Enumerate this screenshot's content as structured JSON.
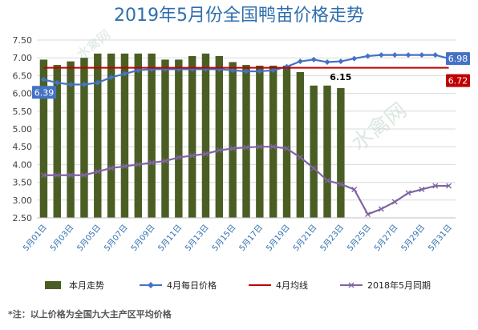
{
  "chart_data": {
    "type": "bar",
    "title": "2019年5月份全国鸭苗价格走势",
    "ylim": [
      2.5,
      7.5
    ],
    "yticks": [
      "2.50",
      "3.00",
      "3.50",
      "4.00",
      "4.50",
      "5.00",
      "5.50",
      "6.00",
      "6.50",
      "7.00",
      "7.50"
    ],
    "categories": [
      "5月01日",
      "5月02日",
      "5月03日",
      "5月04日",
      "5月05日",
      "5月06日",
      "5月07日",
      "5月08日",
      "5月09日",
      "5月10日",
      "5月11日",
      "5月12日",
      "5月13日",
      "5月14日",
      "5月15日",
      "5月16日",
      "5月17日",
      "5月18日",
      "5月19日",
      "5月20日",
      "5月21日",
      "5月22日",
      "5月23日",
      "5月24日",
      "5月25日",
      "5月26日",
      "5月27日",
      "5月28日",
      "5月29日",
      "5月30日",
      "5月31日"
    ],
    "xtick_labels": [
      "5月01日",
      "5月03日",
      "5月05日",
      "5月07日",
      "5月09日",
      "5月11日",
      "5月13日",
      "5月15日",
      "5月17日",
      "5月19日",
      "5月21日",
      "5月23日",
      "5月25日",
      "5月27日",
      "5月29日",
      "5月31日"
    ],
    "series": [
      {
        "name": "本月走势",
        "kind": "bar",
        "color": "#4a5e23",
        "values": [
          6.95,
          6.8,
          6.9,
          7.0,
          7.12,
          7.12,
          7.12,
          7.12,
          7.12,
          6.95,
          6.95,
          7.05,
          7.12,
          7.05,
          6.88,
          6.8,
          6.78,
          6.78,
          6.78,
          6.6,
          6.22,
          6.22,
          6.15,
          null,
          null,
          null,
          null,
          null,
          null,
          null,
          null
        ]
      },
      {
        "name": "4月每日价格",
        "kind": "line",
        "color": "#4472c4",
        "values": [
          6.39,
          6.3,
          6.25,
          6.25,
          6.3,
          6.45,
          6.55,
          6.65,
          6.68,
          6.68,
          6.68,
          6.68,
          6.68,
          6.68,
          6.65,
          6.62,
          6.62,
          6.65,
          6.75,
          6.9,
          6.95,
          6.88,
          6.9,
          6.98,
          7.05,
          7.08,
          7.08,
          7.08,
          7.08,
          7.08,
          6.98
        ]
      },
      {
        "name": "4月均线",
        "kind": "line",
        "color": "#c00000",
        "values": [
          6.72,
          6.72,
          6.72,
          6.72,
          6.72,
          6.72,
          6.72,
          6.72,
          6.72,
          6.72,
          6.72,
          6.72,
          6.72,
          6.72,
          6.72,
          6.72,
          6.72,
          6.72,
          6.72,
          6.72,
          6.72,
          6.72,
          6.72,
          6.72,
          6.72,
          6.72,
          6.72,
          6.72,
          6.72,
          6.72,
          6.72
        ]
      },
      {
        "name": "2018年5月同期",
        "kind": "line",
        "color": "#8064a2",
        "values": [
          3.7,
          3.7,
          3.7,
          3.7,
          3.8,
          3.9,
          3.95,
          4.0,
          4.05,
          4.1,
          4.2,
          4.25,
          4.3,
          4.4,
          4.45,
          4.48,
          4.5,
          4.5,
          4.45,
          4.2,
          3.9,
          3.55,
          3.45,
          3.3,
          2.6,
          2.75,
          2.95,
          3.2,
          3.3,
          3.4,
          3.4
        ]
      }
    ],
    "data_labels": [
      {
        "text": "6.39",
        "color": "#4472c4"
      },
      {
        "text": "6.15",
        "color": "#000000"
      },
      {
        "text": "6.98",
        "color": "#4472c4"
      },
      {
        "text": "6.72",
        "color": "#c00000"
      }
    ],
    "legend_placement": "bottom",
    "grid": true
  },
  "footnote": "*注：以上价格为全国九大主产区平均价格",
  "watermark": "水禽网"
}
